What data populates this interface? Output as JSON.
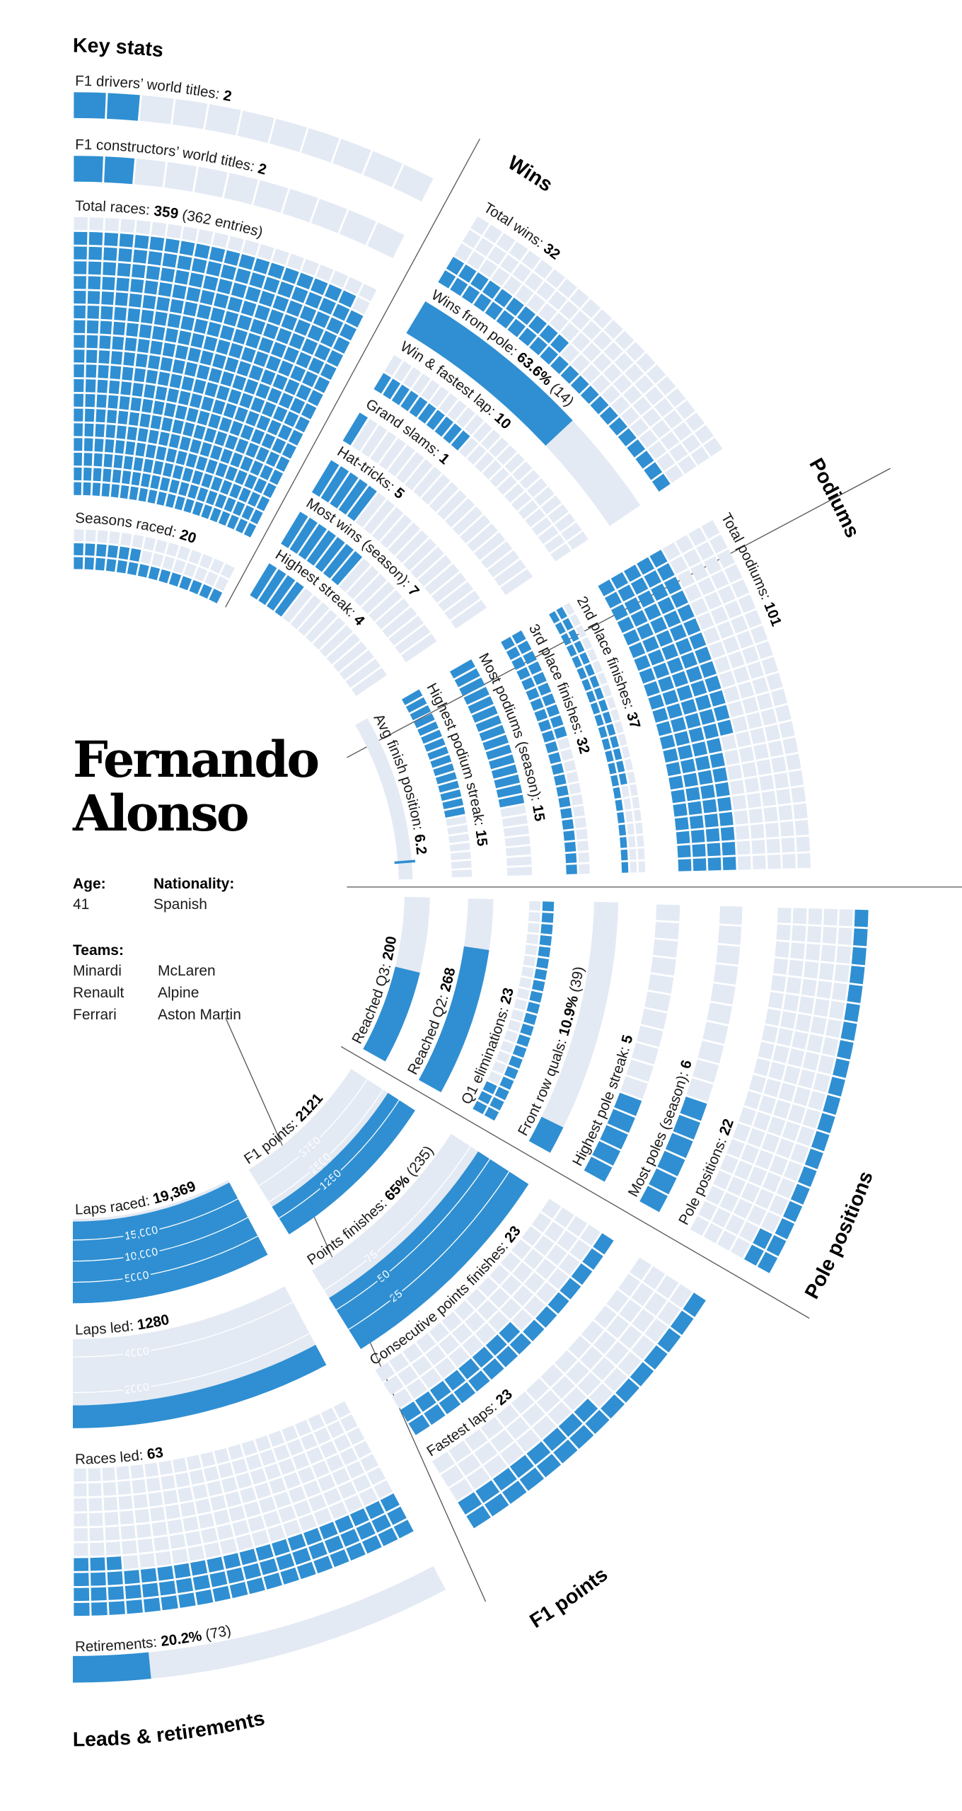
{
  "colors": {
    "filled": "#2f8fd2",
    "empty": "#e4eaf4",
    "divider": "#555555",
    "text": "#111111"
  },
  "profile": {
    "first_name": "Fernando",
    "last_name": "Alonso",
    "age_label": "Age:",
    "age": "41",
    "nationality_label": "Nationality:",
    "nationality": "Spanish",
    "teams_label": "Teams:",
    "teams": [
      "Minardi",
      "Renault",
      "Ferrari",
      "McLaren",
      "Alpine",
      "Aston Martin"
    ]
  },
  "sections": [
    {
      "title": "Key stats",
      "stats": [
        {
          "label": "F1 drivers’ world titles: ",
          "value": "2",
          "extra": "",
          "fill": 2
        },
        {
          "label": "F1 constructors’ world titles: ",
          "value": "2",
          "extra": "",
          "fill": 2
        },
        {
          "label": "Total races: ",
          "value": "359",
          "extra": "(362 entries)",
          "fill": 359
        },
        {
          "label": "Seasons raced: ",
          "value": "20",
          "extra": "",
          "fill": 20
        }
      ]
    },
    {
      "title": "Wins",
      "stats": [
        {
          "label": "Total wins: ",
          "value": "32",
          "extra": "",
          "fill": 32
        },
        {
          "label": "Wins from pole: ",
          "value": "63.6%",
          "extra": "(14)",
          "fill": 0.636
        },
        {
          "label": "Win & fastest lap: ",
          "value": "10",
          "extra": "",
          "fill": 10
        },
        {
          "label": "Grand slams: ",
          "value": "1",
          "extra": "",
          "fill": 1
        },
        {
          "label": "Hat-tricks: ",
          "value": "5",
          "extra": "",
          "fill": 5
        },
        {
          "label": "Most wins (season): ",
          "value": "7",
          "extra": "",
          "fill": 7
        },
        {
          "label": "Highest streak: ",
          "value": "4",
          "extra": "",
          "fill": 4
        }
      ]
    },
    {
      "title": "Podiums",
      "stats": [
        {
          "label": "Total podiums: ",
          "value": "101",
          "extra": "",
          "fill": 101
        },
        {
          "label": "2nd place finishes: ",
          "value": "37",
          "extra": "",
          "fill": 37
        },
        {
          "label": "3rd place finishes: ",
          "value": "32",
          "extra": "",
          "fill": 32
        },
        {
          "label": "Most podiums (season): ",
          "value": "15",
          "extra": "",
          "fill": 15
        },
        {
          "label": "Highest podium streak: ",
          "value": "15",
          "extra": "",
          "fill": 15
        },
        {
          "label": "Avg finish position: ",
          "value": "6.2",
          "extra": "",
          "fill": 6.2
        }
      ]
    },
    {
      "title": "Pole positions",
      "stats": [
        {
          "label": "Reached Q3: ",
          "value": "200",
          "extra": "",
          "fill": 0.557
        },
        {
          "label": "Reached Q2: ",
          "value": "268",
          "extra": "",
          "fill": 0.747
        },
        {
          "label": "Q1 eliminations: ",
          "value": "23",
          "extra": "",
          "fill": 23
        },
        {
          "label": "Front row quals: ",
          "value": "10.9%",
          "extra": "(39)",
          "fill": 0.109
        },
        {
          "label": "Highest pole streak: ",
          "value": "5",
          "extra": "",
          "fill": 5
        },
        {
          "label": "Most poles (season): ",
          "value": "6",
          "extra": "",
          "fill": 6
        },
        {
          "label": "Pole positions: ",
          "value": "22",
          "extra": "",
          "fill": 22
        }
      ]
    },
    {
      "title": "F1 points",
      "stats": [
        {
          "label": "F1 points: ",
          "value": "2121",
          "extra": "",
          "fill": 2121,
          "ticks": [
            "1250",
            "2500",
            "3750"
          ]
        },
        {
          "label": "Points finishes: ",
          "value": "65%",
          "extra": "(235)",
          "fill": 65,
          "ticks": [
            "25",
            "50",
            "75"
          ]
        },
        {
          "label": "Consecutive points finishes: ",
          "value": "23",
          "extra": "",
          "fill": 23
        },
        {
          "label": "Fastest laps: ",
          "value": "23",
          "extra": "",
          "fill": 23
        }
      ]
    },
    {
      "title": "Leads & retirements",
      "stats": [
        {
          "label": "Laps raced: ",
          "value": "19,369",
          "extra": "",
          "fill": 19369,
          "ticks": [
            "5000",
            "10,000",
            "15,000"
          ]
        },
        {
          "label": "Laps led: ",
          "value": "1280",
          "extra": "",
          "fill": 1280,
          "ticks": [
            "2000",
            "4000"
          ]
        },
        {
          "label": "Races led: ",
          "value": "63",
          "extra": "",
          "fill": 63
        },
        {
          "label": "Retirements: ",
          "value": "20.2%",
          "extra": "(73)",
          "fill": 0.202
        }
      ]
    }
  ]
}
